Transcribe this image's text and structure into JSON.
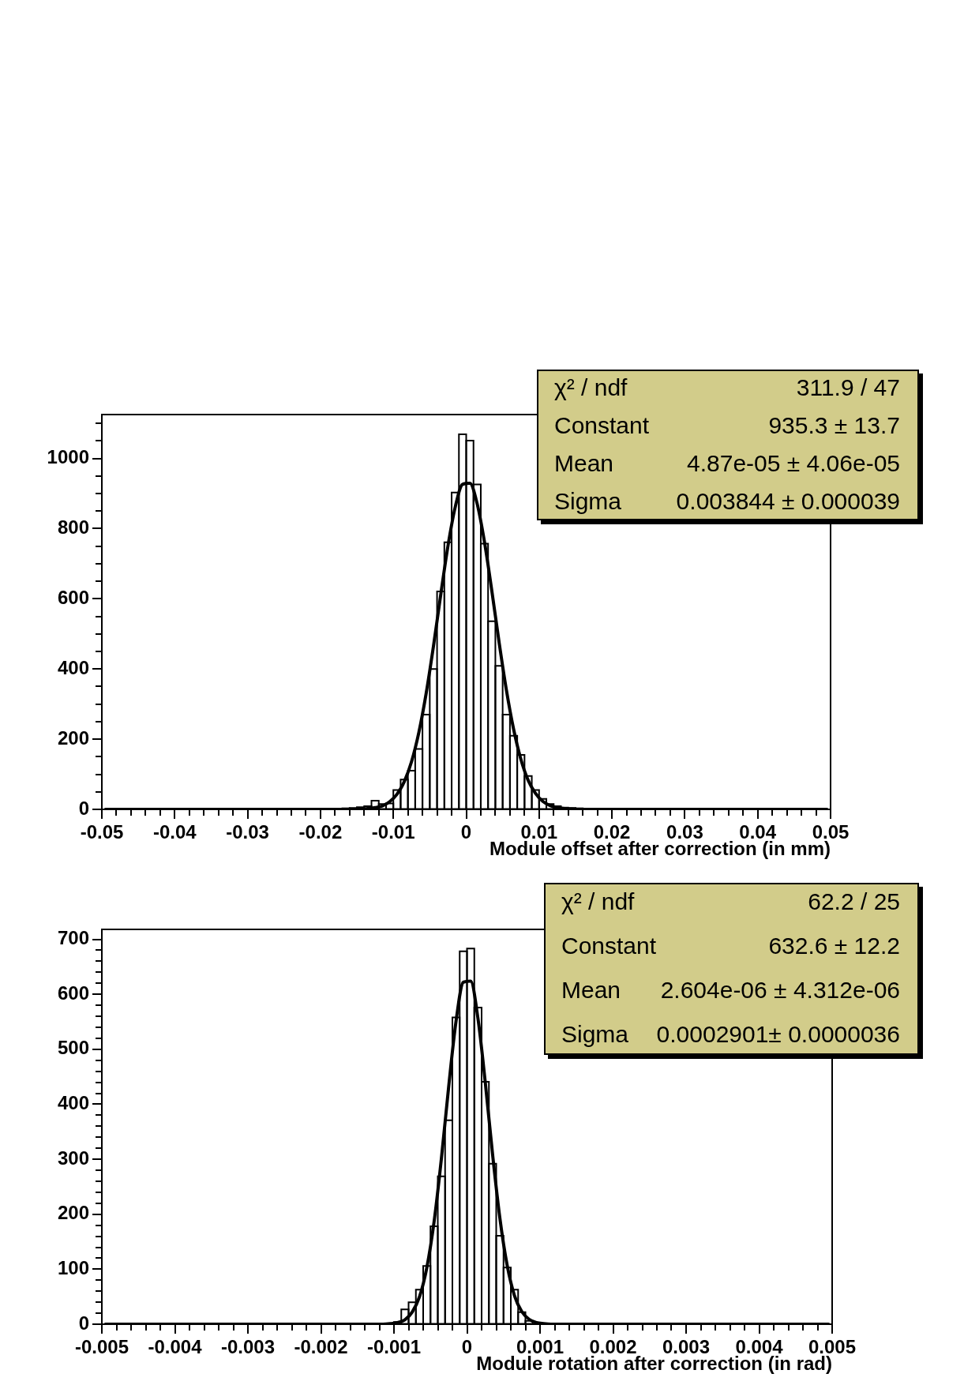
{
  "chart_data": [
    {
      "type": "histogram",
      "xlabel": "Module offset after correction (in mm)",
      "series": [
        {
          "type": "histogram",
          "bins": [
            -0.018,
            -0.017,
            -0.016,
            -0.015,
            -0.014,
            -0.013,
            -0.012,
            -0.011,
            -0.01,
            -0.009,
            -0.008,
            -0.007,
            -0.006,
            -0.005,
            -0.004,
            -0.003,
            -0.002,
            -0.001,
            0,
            0.001,
            0.002,
            0.003,
            0.004,
            0.005,
            0.006,
            0.007,
            0.008,
            0.009,
            0.01,
            0.011,
            0.012,
            0.013,
            0.014,
            0.015,
            0.016
          ],
          "values": [
            2,
            3,
            4,
            6,
            9,
            25,
            15,
            17,
            55,
            85,
            110,
            172,
            270,
            400,
            621,
            761,
            903,
            1069,
            1051,
            926,
            757,
            536,
            409,
            270,
            210,
            155,
            95,
            55,
            30,
            15,
            9,
            5,
            4,
            3
          ],
          "color": "#000000"
        },
        {
          "type": "line",
          "x": [
            -0.0495,
            -0.0155,
            -0.0145,
            -0.0135,
            -0.0125,
            -0.0115,
            -0.0105,
            -0.0095,
            -0.0085,
            -0.0075,
            -0.0065,
            -0.0055,
            -0.0045,
            -0.0035,
            -0.0025,
            -0.0015,
            -0.0005,
            0.0005,
            0.0015,
            0.0025,
            0.0035,
            0.0045,
            0.0055,
            0.0065,
            0.0075,
            0.0085,
            0.0095,
            0.0105,
            0.0115,
            0.0125,
            0.0135,
            0.0145,
            0.0155,
            0.0495
          ],
          "values": [
            0,
            0,
            1,
            2,
            5,
            10,
            22,
            43,
            79,
            136,
            219,
            330,
            464,
            611,
            751,
            862,
            926,
            929,
            871,
            763,
            625,
            478,
            342,
            229,
            143,
            83,
            46,
            23,
            11,
            5,
            2,
            1,
            0,
            0
          ],
          "color": "#000000"
        }
      ],
      "xlim": [
        -0.05,
        0.05
      ],
      "xticks": [
        -0.05,
        {
          "value": -0.048,
          "label": null
        },
        {
          "value": -0.046,
          "label": null
        },
        {
          "value": -0.044,
          "label": null
        },
        {
          "value": -0.042,
          "label": null
        },
        -0.04,
        {
          "value": -0.038,
          "label": null
        },
        {
          "value": -0.036,
          "label": null
        },
        {
          "value": -0.034,
          "label": null
        },
        {
          "value": -0.032,
          "label": null
        },
        -0.03,
        {
          "value": -0.028,
          "label": null
        },
        {
          "value": -0.026,
          "label": null
        },
        {
          "value": -0.024,
          "label": null
        },
        {
          "value": -0.022,
          "label": null
        },
        -0.02,
        {
          "value": -0.018,
          "label": null
        },
        {
          "value": -0.016,
          "label": null
        },
        {
          "value": -0.014,
          "label": null
        },
        {
          "value": -0.012,
          "label": null
        },
        -0.01,
        {
          "value": -0.008,
          "label": null
        },
        {
          "value": -0.006,
          "label": null
        },
        {
          "value": -0.004,
          "label": null
        },
        {
          "value": -0.002,
          "label": null
        },
        0,
        {
          "value": 0.002,
          "label": null
        },
        {
          "value": 0.004,
          "label": null
        },
        {
          "value": 0.006,
          "label": null
        },
        {
          "value": 0.008,
          "label": null
        },
        0.01,
        {
          "value": 0.012,
          "label": null
        },
        {
          "value": 0.014,
          "label": null
        },
        {
          "value": 0.016,
          "label": null
        },
        {
          "value": 0.018,
          "label": null
        },
        0.02,
        {
          "value": 0.022,
          "label": null
        },
        {
          "value": 0.024,
          "label": null
        },
        {
          "value": 0.026,
          "label": null
        },
        {
          "value": 0.028,
          "label": null
        },
        0.03,
        {
          "value": 0.032,
          "label": null
        },
        {
          "value": 0.034,
          "label": null
        },
        {
          "value": 0.036,
          "label": null
        },
        {
          "value": 0.038,
          "label": null
        },
        0.04,
        {
          "value": 0.042,
          "label": null
        },
        {
          "value": 0.044,
          "label": null
        },
        {
          "value": 0.046,
          "label": null
        },
        {
          "value": 0.048,
          "label": null
        },
        0.05
      ],
      "ylim": [
        0,
        1125
      ],
      "yticks": [
        0,
        {
          "value": 50,
          "label": null
        },
        {
          "value": 100,
          "label": null
        },
        {
          "value": 150,
          "label": null
        },
        200,
        {
          "value": 250,
          "label": null
        },
        {
          "value": 300,
          "label": null
        },
        {
          "value": 350,
          "label": null
        },
        400,
        {
          "value": 450,
          "label": null
        },
        {
          "value": 500,
          "label": null
        },
        {
          "value": 550,
          "label": null
        },
        600,
        {
          "value": 650,
          "label": null
        },
        {
          "value": 700,
          "label": null
        },
        {
          "value": 750,
          "label": null
        },
        800,
        {
          "value": 850,
          "label": null
        },
        {
          "value": 900,
          "label": null
        },
        {
          "value": 950,
          "label": null
        },
        1000,
        {
          "value": 1050,
          "label": null
        },
        {
          "value": 1100,
          "label": null
        }
      ],
      "annotations": [
        "χ² / ndf",
        "311.9 / 47",
        "Constant",
        "935.3 ± 13.7",
        "Mean",
        "4.87e-05 ± 4.06e-05",
        "Sigma",
        "0.003844 ± 0.000039"
      ]
    },
    {
      "type": "histogram",
      "xlabel": "Module rotation after correction (in rad)",
      "series": [
        {
          "type": "histogram",
          "bins": [
            -0.001,
            -0.0009,
            -0.0008,
            -0.0007,
            -0.0006,
            -0.0005,
            -0.0004,
            -0.0003,
            -0.0002,
            -0.0001,
            0,
            0.0001,
            0.0002,
            0.0003,
            0.0004,
            0.0005,
            0.0006,
            0.0007,
            0.0008,
            0.0009
          ],
          "values": [
            4,
            27,
            40,
            63,
            106,
            178,
            269,
            371,
            558,
            678,
            683,
            576,
            441,
            292,
            161,
            103,
            63,
            22,
            6
          ],
          "color": "#000000"
        },
        {
          "type": "line",
          "x": [
            -0.00495,
            -0.00115,
            -0.00105,
            -0.00095,
            -0.00085,
            -0.00075,
            -0.00065,
            -0.00055,
            -0.00045,
            -0.00035,
            -0.00025,
            -0.00015,
            -5e-05,
            5e-05,
            0.00015,
            0.00025,
            0.00035,
            0.00045,
            0.00055,
            0.00065,
            0.00075,
            0.00085,
            0.00095,
            0.00105,
            0.00115,
            0.00495
          ],
          "values": [
            0,
            0,
            1,
            3,
            8,
            22,
            50,
            103,
            187,
            302,
            433,
            551,
            622,
            624,
            556,
            440,
            309,
            193,
            107,
            52,
            23,
            9,
            3,
            1,
            0,
            0
          ],
          "color": "#000000"
        }
      ],
      "xlim": [
        -0.005,
        0.005
      ],
      "xticks": [
        -0.005,
        {
          "value": -0.0048,
          "label": null
        },
        {
          "value": -0.0046,
          "label": null
        },
        {
          "value": -0.0044,
          "label": null
        },
        {
          "value": -0.0042,
          "label": null
        },
        -0.004,
        {
          "value": -0.0038,
          "label": null
        },
        {
          "value": -0.0036,
          "label": null
        },
        {
          "value": -0.0034,
          "label": null
        },
        {
          "value": -0.0032,
          "label": null
        },
        -0.003,
        {
          "value": -0.0028,
          "label": null
        },
        {
          "value": -0.0026,
          "label": null
        },
        {
          "value": -0.0024,
          "label": null
        },
        {
          "value": -0.0022,
          "label": null
        },
        -0.002,
        {
          "value": -0.0018,
          "label": null
        },
        {
          "value": -0.0016,
          "label": null
        },
        {
          "value": -0.0014,
          "label": null
        },
        {
          "value": -0.0012,
          "label": null
        },
        -0.001,
        {
          "value": -0.0008,
          "label": null
        },
        {
          "value": -0.0006,
          "label": null
        },
        {
          "value": -0.0004,
          "label": null
        },
        {
          "value": -0.0002,
          "label": null
        },
        0,
        {
          "value": 0.0002,
          "label": null
        },
        {
          "value": 0.0004,
          "label": null
        },
        {
          "value": 0.0006,
          "label": null
        },
        {
          "value": 0.0008,
          "label": null
        },
        0.001,
        {
          "value": 0.0012,
          "label": null
        },
        {
          "value": 0.0014,
          "label": null
        },
        {
          "value": 0.0016,
          "label": null
        },
        {
          "value": 0.0018,
          "label": null
        },
        0.002,
        {
          "value": 0.0022,
          "label": null
        },
        {
          "value": 0.0024,
          "label": null
        },
        {
          "value": 0.0026,
          "label": null
        },
        {
          "value": 0.0028,
          "label": null
        },
        0.003,
        {
          "value": 0.0032,
          "label": null
        },
        {
          "value": 0.0034,
          "label": null
        },
        {
          "value": 0.0036,
          "label": null
        },
        {
          "value": 0.0038,
          "label": null
        },
        0.004,
        {
          "value": 0.0042,
          "label": null
        },
        {
          "value": 0.0044,
          "label": null
        },
        {
          "value": 0.0046,
          "label": null
        },
        {
          "value": 0.0048,
          "label": null
        },
        0.005
      ],
      "ylim": [
        0,
        718
      ],
      "yticks": [
        0,
        {
          "value": 20,
          "label": null
        },
        {
          "value": 40,
          "label": null
        },
        {
          "value": 60,
          "label": null
        },
        {
          "value": 80,
          "label": null
        },
        100,
        {
          "value": 120,
          "label": null
        },
        {
          "value": 140,
          "label": null
        },
        {
          "value": 160,
          "label": null
        },
        {
          "value": 180,
          "label": null
        },
        200,
        {
          "value": 220,
          "label": null
        },
        {
          "value": 240,
          "label": null
        },
        {
          "value": 260,
          "label": null
        },
        {
          "value": 280,
          "label": null
        },
        300,
        {
          "value": 320,
          "label": null
        },
        {
          "value": 340,
          "label": null
        },
        {
          "value": 360,
          "label": null
        },
        {
          "value": 380,
          "label": null
        },
        400,
        {
          "value": 420,
          "label": null
        },
        {
          "value": 440,
          "label": null
        },
        {
          "value": 460,
          "label": null
        },
        {
          "value": 480,
          "label": null
        },
        500,
        {
          "value": 520,
          "label": null
        },
        {
          "value": 540,
          "label": null
        },
        {
          "value": 560,
          "label": null
        },
        {
          "value": 580,
          "label": null
        },
        600,
        {
          "value": 620,
          "label": null
        },
        {
          "value": 640,
          "label": null
        },
        {
          "value": 660,
          "label": null
        },
        {
          "value": 680,
          "label": null
        },
        700
      ],
      "annotations": [
        "χ² / ndf",
        "62.2 / 25",
        "Constant",
        "632.6 ± 12.2",
        "Mean",
        "2.604e-06 ± 4.312e-06",
        "Sigma",
        "0.0002901± 0.0000036"
      ]
    }
  ]
}
